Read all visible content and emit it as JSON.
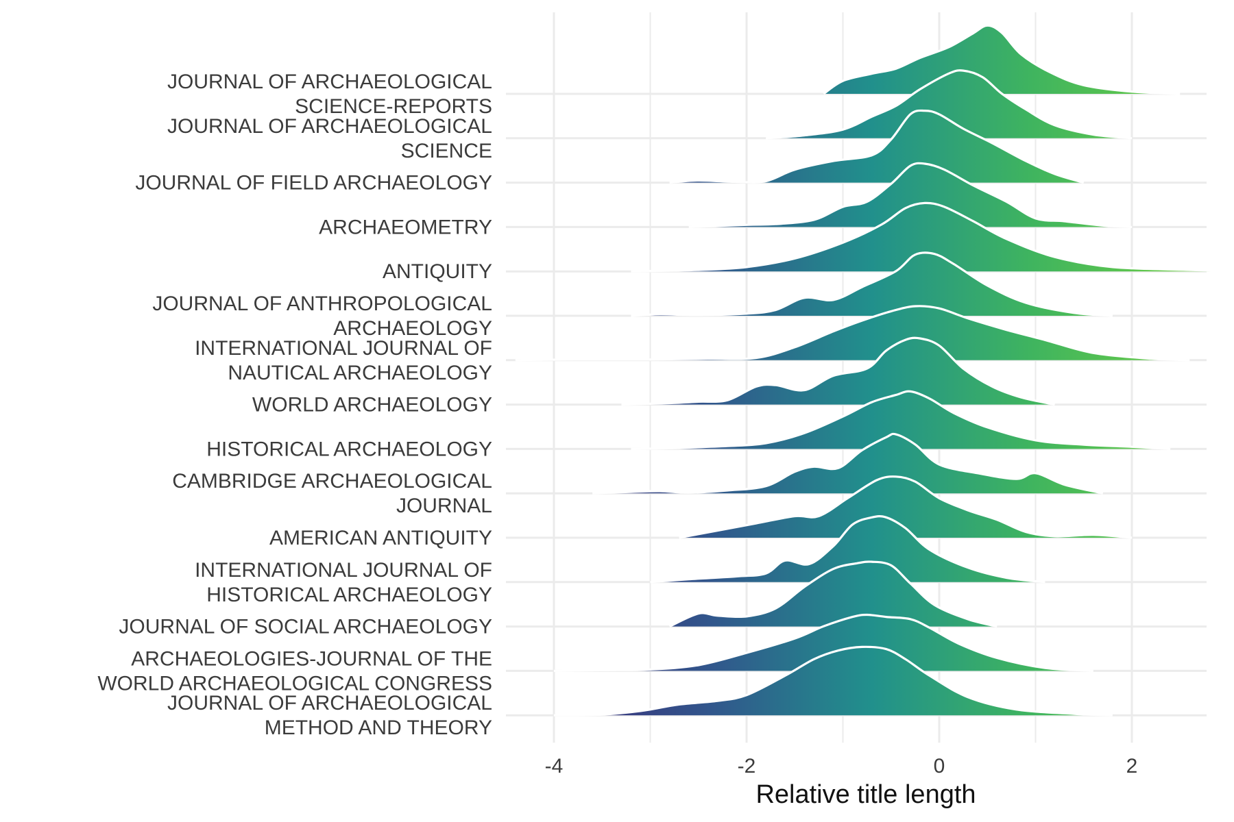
{
  "chart_data": {
    "type": "ridgeline",
    "title": "",
    "xlabel": "Relative title length",
    "ylabel": "",
    "xlim": [
      -4.9,
      3.6
    ],
    "x_ticks": [
      "-4",
      "-2",
      "0",
      "2"
    ],
    "x_tick_values": [
      -4,
      -2,
      0,
      2
    ],
    "grid": true,
    "legend": "none",
    "fill": "viridis gradient along x (dark purple at low values to green at high values)",
    "colors": {
      "low": "#3b2a78",
      "mid": "#21908c",
      "high": "#5ec44f",
      "outline": "#ffffff",
      "grid": "#ebebeb"
    },
    "series": [
      {
        "label": [
          "JOURNAL OF ARCHAEOLOGICAL",
          "SCIENCE-REPORTS"
        ],
        "density": [
          [
            -1.2,
            0
          ],
          [
            -1.0,
            0.18
          ],
          [
            -0.7,
            0.28
          ],
          [
            -0.45,
            0.35
          ],
          [
            -0.2,
            0.5
          ],
          [
            0.1,
            0.65
          ],
          [
            0.35,
            0.84
          ],
          [
            0.5,
            0.95
          ],
          [
            0.65,
            0.85
          ],
          [
            0.85,
            0.55
          ],
          [
            1.15,
            0.3
          ],
          [
            1.5,
            0.12
          ],
          [
            2.0,
            0.03
          ],
          [
            2.5,
            0
          ]
        ]
      },
      {
        "label": [
          "JOURNAL OF ARCHAEOLOGICAL",
          "SCIENCE"
        ],
        "density": [
          [
            -1.8,
            0
          ],
          [
            -1.4,
            0.04
          ],
          [
            -1.0,
            0.12
          ],
          [
            -0.7,
            0.3
          ],
          [
            -0.45,
            0.45
          ],
          [
            -0.2,
            0.68
          ],
          [
            0.1,
            0.9
          ],
          [
            0.25,
            0.94
          ],
          [
            0.45,
            0.85
          ],
          [
            0.65,
            0.62
          ],
          [
            0.9,
            0.4
          ],
          [
            1.2,
            0.18
          ],
          [
            1.6,
            0.05
          ],
          [
            2.0,
            0
          ]
        ]
      },
      {
        "label": [
          "JOURNAL OF FIELD ARCHAEOLOGY"
        ],
        "density": [
          [
            -2.8,
            0
          ],
          [
            -2.5,
            0.03
          ],
          [
            -2.1,
            0.01
          ],
          [
            -1.8,
            0.02
          ],
          [
            -1.5,
            0.18
          ],
          [
            -1.1,
            0.3
          ],
          [
            -0.7,
            0.38
          ],
          [
            -0.5,
            0.6
          ],
          [
            -0.3,
            0.95
          ],
          [
            -0.15,
            1.0
          ],
          [
            0.0,
            0.95
          ],
          [
            0.25,
            0.75
          ],
          [
            0.55,
            0.55
          ],
          [
            0.9,
            0.3
          ],
          [
            1.2,
            0.12
          ],
          [
            1.5,
            0
          ]
        ]
      },
      {
        "label": [
          "ARCHAEOMETRY"
        ],
        "density": [
          [
            -2.6,
            0
          ],
          [
            -2.0,
            0.03
          ],
          [
            -1.7,
            0.04
          ],
          [
            -1.3,
            0.1
          ],
          [
            -1.0,
            0.28
          ],
          [
            -0.75,
            0.35
          ],
          [
            -0.5,
            0.6
          ],
          [
            -0.3,
            0.85
          ],
          [
            -0.15,
            0.88
          ],
          [
            0.05,
            0.8
          ],
          [
            0.35,
            0.58
          ],
          [
            0.7,
            0.35
          ],
          [
            1.0,
            0.12
          ],
          [
            1.3,
            0.08
          ],
          [
            1.7,
            0.02
          ],
          [
            2.0,
            0
          ]
        ]
      },
      {
        "label": [
          "ANTIQUITY"
        ],
        "density": [
          [
            -3.2,
            0
          ],
          [
            -2.5,
            0.02
          ],
          [
            -2.0,
            0.06
          ],
          [
            -1.5,
            0.18
          ],
          [
            -1.0,
            0.4
          ],
          [
            -0.6,
            0.65
          ],
          [
            -0.35,
            0.88
          ],
          [
            -0.15,
            0.95
          ],
          [
            0.05,
            0.9
          ],
          [
            0.35,
            0.7
          ],
          [
            0.7,
            0.45
          ],
          [
            1.2,
            0.2
          ],
          [
            1.8,
            0.06
          ],
          [
            2.6,
            0.02
          ],
          [
            3.3,
            0
          ]
        ]
      },
      {
        "label": [
          "JOURNAL OF ANTHROPOLOGICAL",
          "ARCHAEOLOGY"
        ],
        "density": [
          [
            -3.2,
            0
          ],
          [
            -2.9,
            0.02
          ],
          [
            -2.5,
            0.01
          ],
          [
            -2.0,
            0.03
          ],
          [
            -1.7,
            0.08
          ],
          [
            -1.4,
            0.25
          ],
          [
            -1.1,
            0.22
          ],
          [
            -0.8,
            0.4
          ],
          [
            -0.45,
            0.62
          ],
          [
            -0.25,
            0.85
          ],
          [
            -0.05,
            0.86
          ],
          [
            0.15,
            0.72
          ],
          [
            0.5,
            0.42
          ],
          [
            0.9,
            0.18
          ],
          [
            1.4,
            0.04
          ],
          [
            1.8,
            0
          ]
        ]
      },
      {
        "label": [
          "INTERNATIONAL JOURNAL OF",
          "NAUTICAL ARCHAEOLOGY"
        ],
        "density": [
          [
            -4.4,
            0
          ],
          [
            -3.8,
            0.01
          ],
          [
            -3.0,
            0.01
          ],
          [
            -2.4,
            0.02
          ],
          [
            -1.9,
            0.03
          ],
          [
            -1.5,
            0.18
          ],
          [
            -1.1,
            0.4
          ],
          [
            -0.8,
            0.55
          ],
          [
            -0.5,
            0.68
          ],
          [
            -0.25,
            0.75
          ],
          [
            0.0,
            0.72
          ],
          [
            0.3,
            0.58
          ],
          [
            0.7,
            0.42
          ],
          [
            1.1,
            0.28
          ],
          [
            1.6,
            0.1
          ],
          [
            2.2,
            0.02
          ],
          [
            2.6,
            0
          ]
        ]
      },
      {
        "label": [
          "WORLD ARCHAEOLOGY"
        ],
        "density": [
          [
            -3.3,
            0
          ],
          [
            -2.8,
            0.02
          ],
          [
            -2.5,
            0.04
          ],
          [
            -2.2,
            0.06
          ],
          [
            -1.9,
            0.25
          ],
          [
            -1.7,
            0.27
          ],
          [
            -1.4,
            0.2
          ],
          [
            -1.1,
            0.4
          ],
          [
            -0.75,
            0.5
          ],
          [
            -0.55,
            0.75
          ],
          [
            -0.35,
            0.9
          ],
          [
            -0.2,
            0.92
          ],
          [
            0.0,
            0.82
          ],
          [
            0.25,
            0.5
          ],
          [
            0.55,
            0.25
          ],
          [
            0.85,
            0.1
          ],
          [
            1.2,
            0
          ]
        ]
      },
      {
        "label": [
          "HISTORICAL ARCHAEOLOGY"
        ],
        "density": [
          [
            -3.2,
            0
          ],
          [
            -2.8,
            0.01
          ],
          [
            -2.2,
            0.04
          ],
          [
            -1.8,
            0.08
          ],
          [
            -1.4,
            0.22
          ],
          [
            -1.0,
            0.45
          ],
          [
            -0.7,
            0.65
          ],
          [
            -0.45,
            0.75
          ],
          [
            -0.3,
            0.8
          ],
          [
            -0.1,
            0.7
          ],
          [
            0.15,
            0.5
          ],
          [
            0.5,
            0.3
          ],
          [
            1.0,
            0.12
          ],
          [
            1.5,
            0.06
          ],
          [
            2.0,
            0.03
          ],
          [
            2.4,
            0
          ]
        ]
      },
      {
        "label": [
          "CAMBRIDGE ARCHAEOLOGICAL",
          "JOURNAL"
        ],
        "density": [
          [
            -3.6,
            0
          ],
          [
            -3.2,
            0.02
          ],
          [
            -2.9,
            0.03
          ],
          [
            -2.6,
            0.01
          ],
          [
            -2.2,
            0.04
          ],
          [
            -1.8,
            0.1
          ],
          [
            -1.5,
            0.3
          ],
          [
            -1.3,
            0.37
          ],
          [
            -1.05,
            0.35
          ],
          [
            -0.8,
            0.6
          ],
          [
            -0.55,
            0.78
          ],
          [
            -0.45,
            0.82
          ],
          [
            -0.25,
            0.68
          ],
          [
            0.0,
            0.4
          ],
          [
            0.4,
            0.28
          ],
          [
            0.8,
            0.2
          ],
          [
            1.0,
            0.28
          ],
          [
            1.3,
            0.12
          ],
          [
            1.7,
            0
          ]
        ]
      },
      {
        "label": [
          "AMERICAN ANTIQUITY"
        ],
        "density": [
          [
            -2.7,
            0
          ],
          [
            -2.3,
            0.1
          ],
          [
            -1.9,
            0.2
          ],
          [
            -1.5,
            0.3
          ],
          [
            -1.25,
            0.3
          ],
          [
            -0.95,
            0.55
          ],
          [
            -0.65,
            0.8
          ],
          [
            -0.45,
            0.85
          ],
          [
            -0.25,
            0.78
          ],
          [
            0.0,
            0.55
          ],
          [
            0.3,
            0.38
          ],
          [
            0.6,
            0.25
          ],
          [
            0.9,
            0.08
          ],
          [
            1.2,
            0.02
          ],
          [
            1.6,
            0.04
          ],
          [
            2.0,
            0
          ]
        ]
      },
      {
        "label": [
          "INTERNATIONAL JOURNAL OF",
          "HISTORICAL ARCHAEOLOGY"
        ],
        "density": [
          [
            -3.0,
            0
          ],
          [
            -2.6,
            0.04
          ],
          [
            -2.1,
            0.08
          ],
          [
            -1.8,
            0.12
          ],
          [
            -1.6,
            0.3
          ],
          [
            -1.35,
            0.25
          ],
          [
            -1.1,
            0.5
          ],
          [
            -0.9,
            0.8
          ],
          [
            -0.7,
            0.9
          ],
          [
            -0.55,
            0.9
          ],
          [
            -0.35,
            0.75
          ],
          [
            -0.1,
            0.45
          ],
          [
            0.3,
            0.2
          ],
          [
            0.7,
            0.06
          ],
          [
            1.1,
            0
          ]
        ]
      },
      {
        "label": [
          "JOURNAL OF SOCIAL ARCHAEOLOGY"
        ],
        "density": [
          [
            -2.8,
            0
          ],
          [
            -2.5,
            0.18
          ],
          [
            -2.3,
            0.15
          ],
          [
            -2.0,
            0.14
          ],
          [
            -1.7,
            0.25
          ],
          [
            -1.4,
            0.55
          ],
          [
            -1.1,
            0.8
          ],
          [
            -0.85,
            0.88
          ],
          [
            -0.7,
            0.9
          ],
          [
            -0.5,
            0.85
          ],
          [
            -0.3,
            0.6
          ],
          [
            -0.05,
            0.3
          ],
          [
            0.3,
            0.1
          ],
          [
            0.6,
            0
          ]
        ]
      },
      {
        "label": [
          "ARCHAEOLOGIES-JOURNAL OF THE",
          "WORLD ARCHAEOLOGICAL CONGRESS"
        ],
        "density": [
          [
            -4.0,
            0
          ],
          [
            -3.5,
            0.01
          ],
          [
            -3.0,
            0.02
          ],
          [
            -2.5,
            0.08
          ],
          [
            -2.0,
            0.25
          ],
          [
            -1.5,
            0.45
          ],
          [
            -1.2,
            0.62
          ],
          [
            -0.9,
            0.75
          ],
          [
            -0.75,
            0.78
          ],
          [
            -0.55,
            0.75
          ],
          [
            -0.3,
            0.72
          ],
          [
            -0.1,
            0.6
          ],
          [
            0.2,
            0.38
          ],
          [
            0.6,
            0.18
          ],
          [
            1.1,
            0.04
          ],
          [
            1.6,
            0
          ]
        ]
      },
      {
        "label": [
          "JOURNAL OF ARCHAEOLOGICAL",
          "METHOD AND THEORY"
        ],
        "density": [
          [
            -4.0,
            0
          ],
          [
            -3.5,
            0.01
          ],
          [
            -3.1,
            0.06
          ],
          [
            -2.7,
            0.15
          ],
          [
            -2.3,
            0.2
          ],
          [
            -2.0,
            0.28
          ],
          [
            -1.6,
            0.55
          ],
          [
            -1.3,
            0.78
          ],
          [
            -1.05,
            0.9
          ],
          [
            -0.8,
            0.95
          ],
          [
            -0.55,
            0.92
          ],
          [
            -0.35,
            0.78
          ],
          [
            -0.1,
            0.55
          ],
          [
            0.3,
            0.25
          ],
          [
            0.8,
            0.08
          ],
          [
            1.4,
            0.02
          ],
          [
            1.8,
            0
          ]
        ]
      }
    ]
  }
}
